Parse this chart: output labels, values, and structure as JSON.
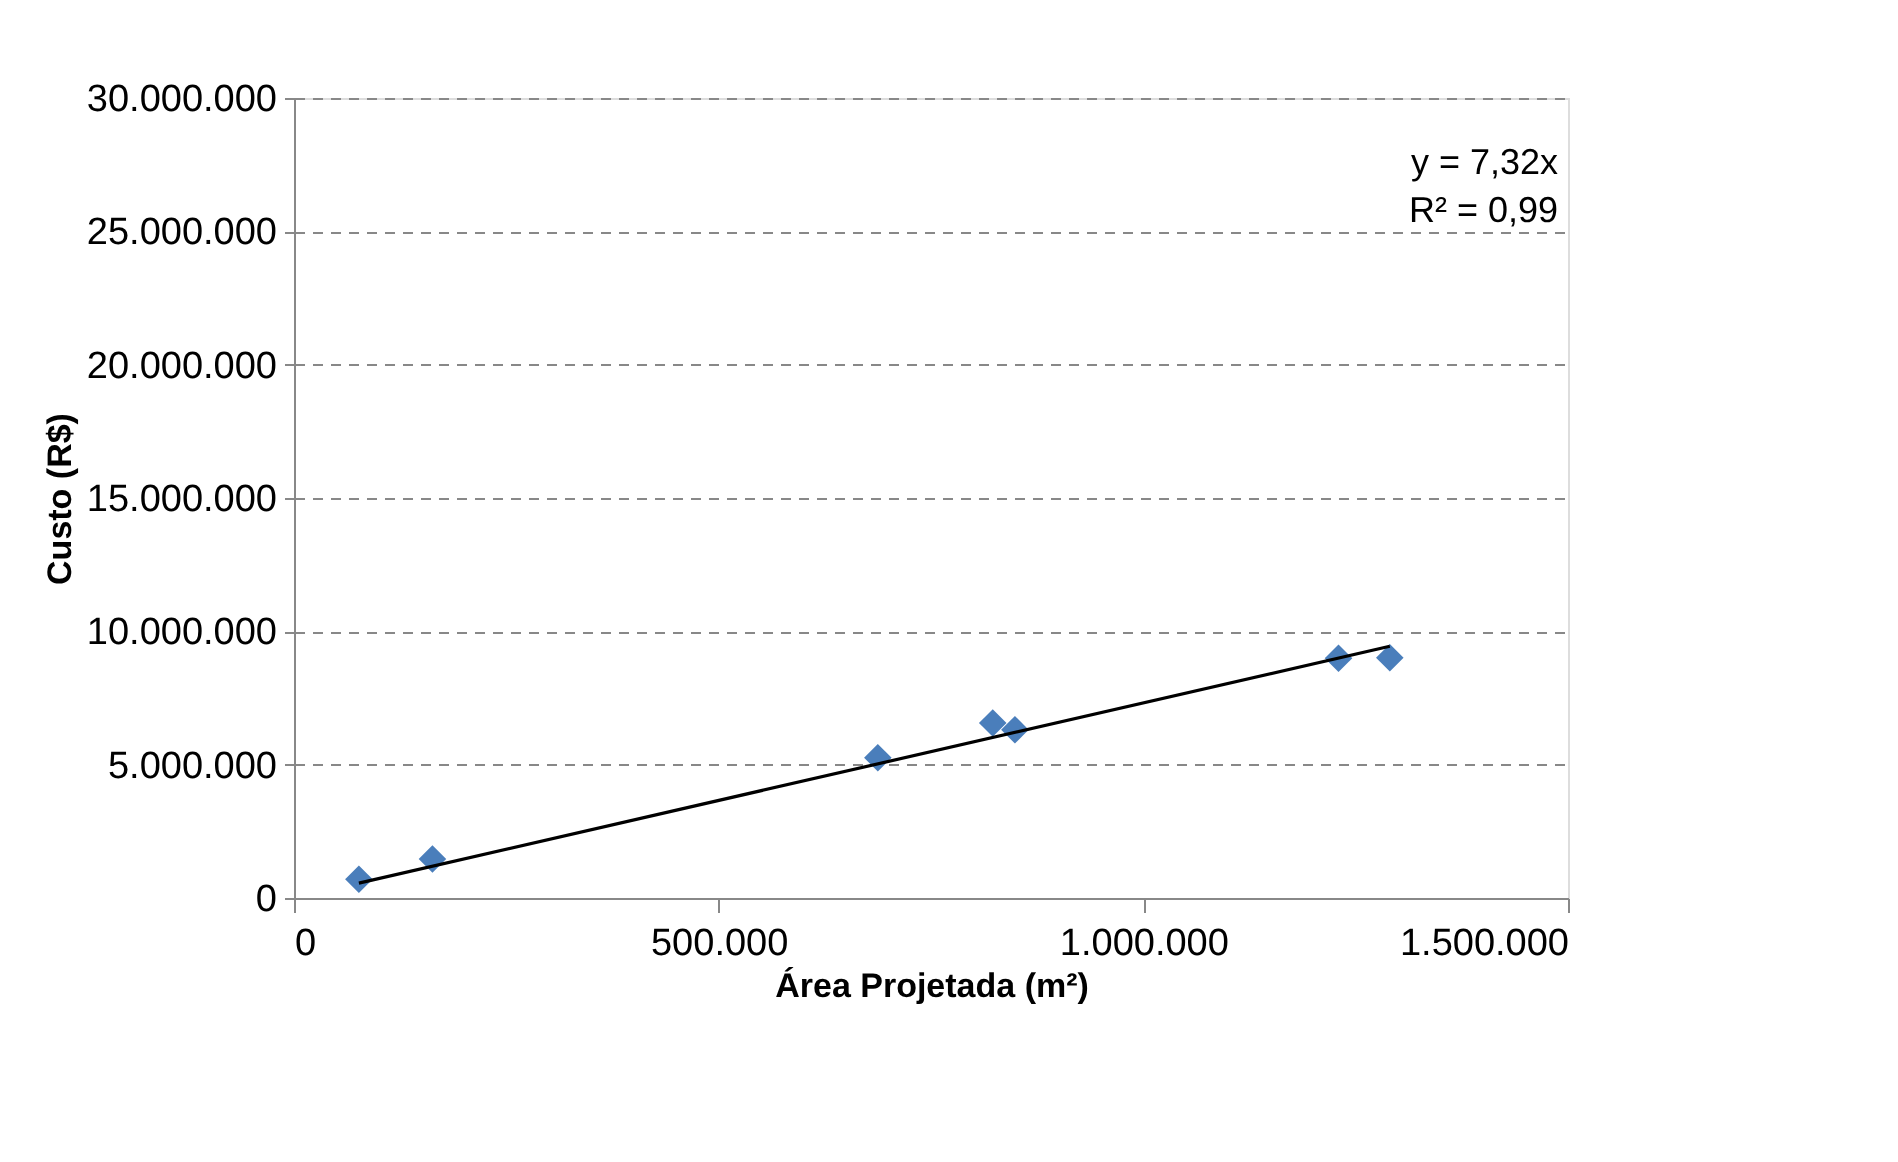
{
  "chart_data": {
    "type": "scatter",
    "xlabel": "Área  Projetada (m²)",
    "ylabel": "Custo (R$)",
    "series": [
      {
        "type": "scatter",
        "color": "#4a7ebb",
        "marker": "diamond",
        "x": [
          76400,
          163000,
          687400,
          822700,
          848800,
          1229800,
          1290200
        ],
        "values": [
          700000,
          1460000,
          5260000,
          6560000,
          6310000,
          8990000,
          9010000
        ]
      },
      {
        "type": "line",
        "color": "#000000",
        "line_style": "solid",
        "x": [
          76400,
          1290200
        ],
        "values": [
          560000,
          9440000
        ]
      }
    ],
    "xlim": [
      0,
      1500000
    ],
    "ylim": [
      0,
      30000000
    ],
    "xticks": [
      {
        "value": 0,
        "label": "0"
      },
      {
        "value": 500000,
        "label": "500.000"
      },
      {
        "value": 1000000,
        "label": "1.000.000"
      },
      {
        "value": 1500000,
        "label": "1.500.000"
      }
    ],
    "yticks": [
      {
        "value": 0,
        "label": "0"
      },
      {
        "value": 5000000,
        "label": "5.000.000"
      },
      {
        "value": 10000000,
        "label": "10.000.000"
      },
      {
        "value": 15000000,
        "label": "15.000.000"
      },
      {
        "value": 20000000,
        "label": "20.000.000"
      },
      {
        "value": 25000000,
        "label": "25.000.000"
      },
      {
        "value": 30000000,
        "label": "30.000.000"
      }
    ],
    "grid": "y",
    "annotations": [
      "y = 7,32x",
      "R² = 0,99"
    ]
  }
}
